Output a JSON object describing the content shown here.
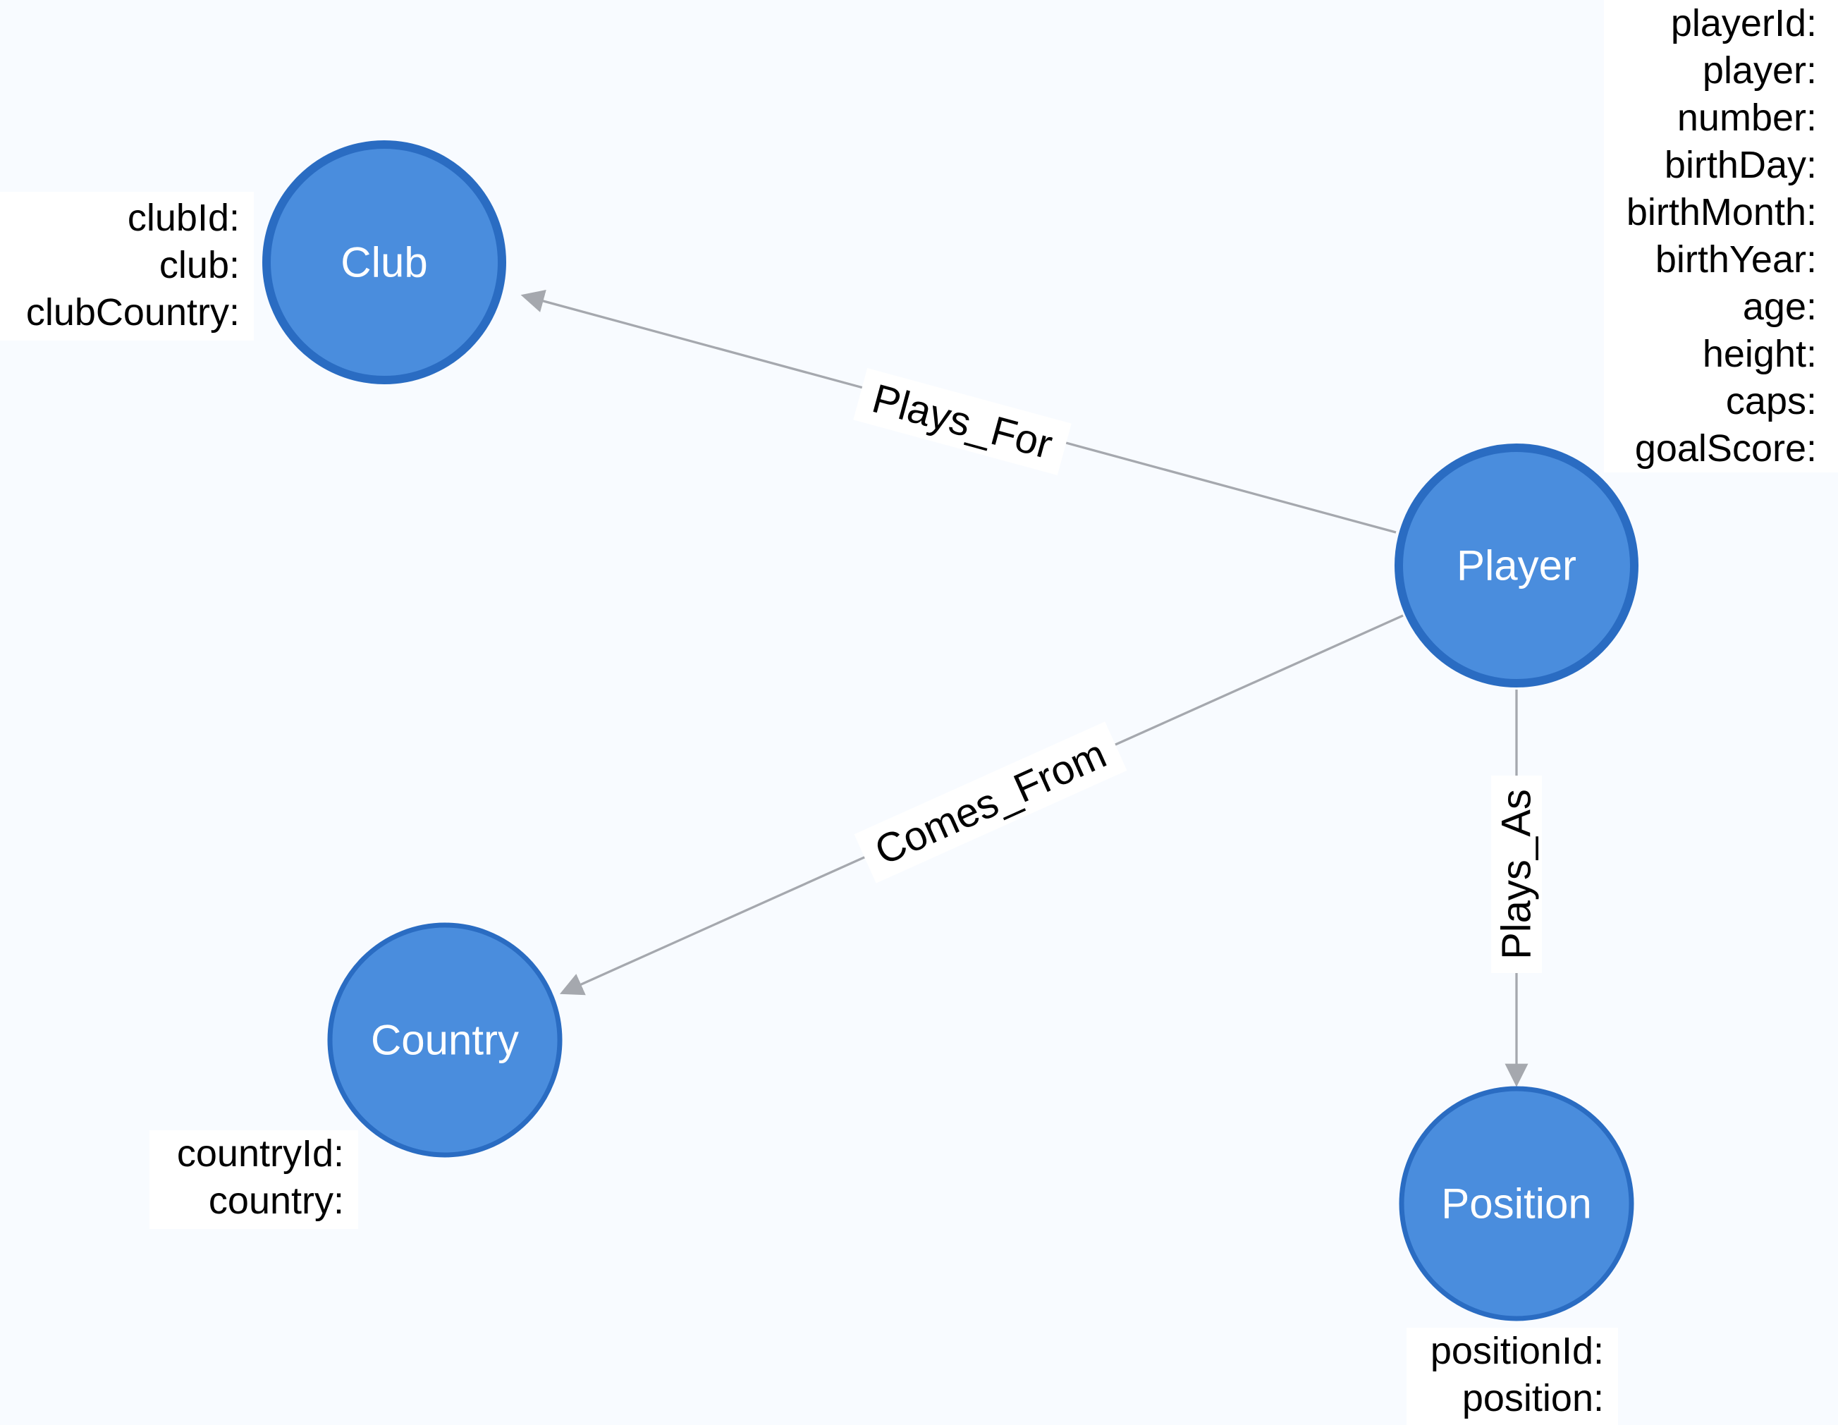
{
  "colors": {
    "node_fill": "#4a8ddd",
    "node_stroke": "#2a6cc2",
    "edge": "#a5a8ae",
    "background": "#f8fbff"
  },
  "nodes": {
    "club": {
      "label": "Club",
      "properties": [
        "clubId:",
        "club:",
        "clubCountry:"
      ]
    },
    "player": {
      "label": "Player",
      "properties": [
        "playerId:",
        "player:",
        "number:",
        "birthDay:",
        "birthMonth:",
        "birthYear:",
        "age:",
        "height:",
        "caps:",
        "goalScore:"
      ]
    },
    "country": {
      "label": "Country",
      "properties": [
        "countryId:",
        "country:"
      ]
    },
    "position": {
      "label": "Position",
      "properties": [
        "positionId:",
        "position:"
      ]
    }
  },
  "edges": {
    "plays_for": {
      "label": "Plays_For",
      "from": "Player",
      "to": "Club"
    },
    "comes_from": {
      "label": "Comes_From",
      "from": "Player",
      "to": "Country"
    },
    "plays_as": {
      "label": "Plays_As",
      "from": "Player",
      "to": "Position"
    }
  }
}
